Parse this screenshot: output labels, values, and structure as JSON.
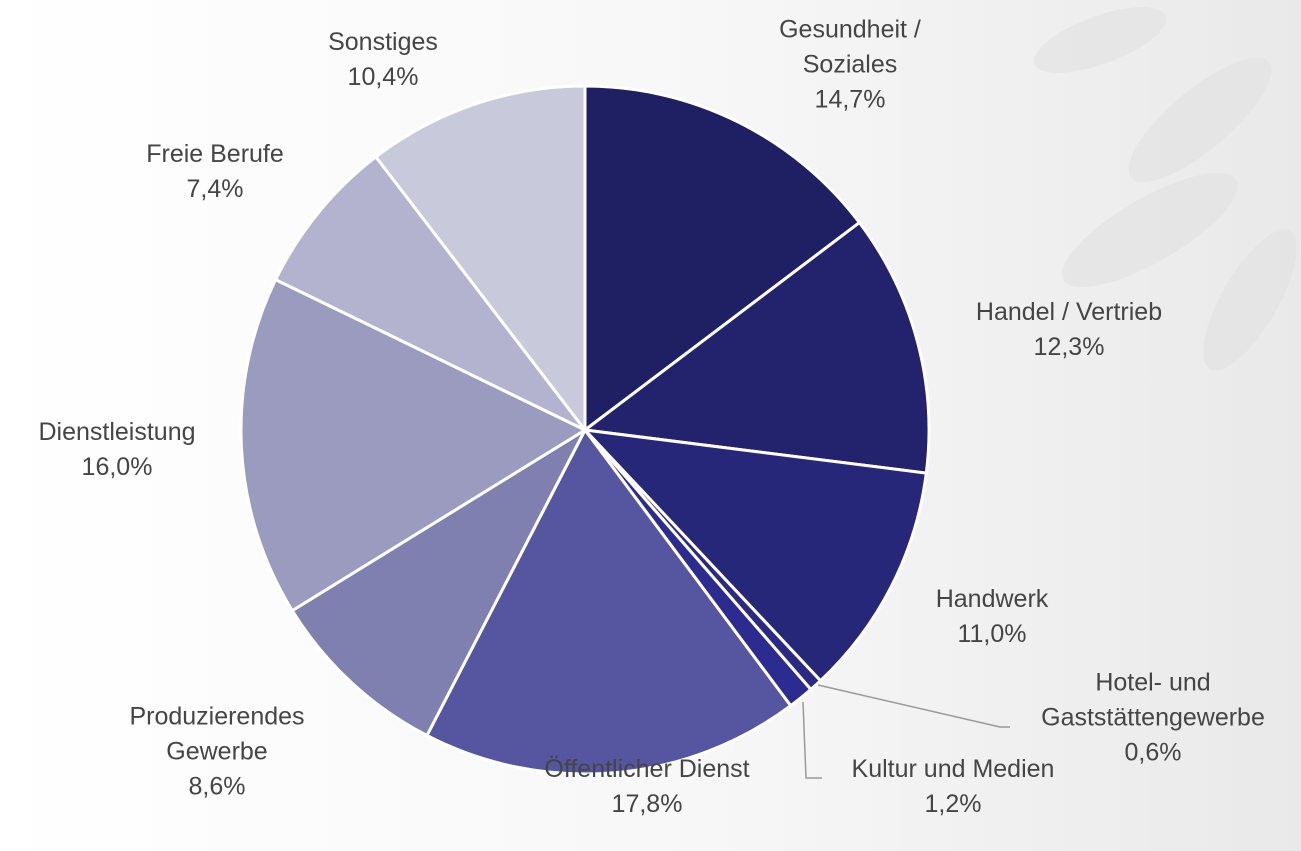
{
  "chart_data": {
    "type": "pie",
    "categories": [
      "Gesundheit / Soziales",
      "Handel / Vertrieb",
      "Handwerk",
      "Hotel- und Gaststättengewerbe",
      "Kultur und Medien",
      "Öffentlicher Dienst",
      "Produzierendes Gewerbe",
      "Dienstleistung",
      "Freie Berufe",
      "Sonstiges"
    ],
    "values": [
      14.7,
      12.3,
      11.0,
      0.6,
      1.2,
      17.8,
      8.6,
      16.0,
      7.4,
      10.4
    ],
    "value_labels": [
      "14,7%",
      "12,3%",
      "11,0%",
      "0,6%",
      "1,2%",
      "17,8%",
      "8,6%",
      "16,0%",
      "7,4%",
      "10,4%"
    ],
    "colors": [
      "#1f1f63",
      "#22226d",
      "#272779",
      "#2a2a84",
      "#2c2c90",
      "#5555a0",
      "#7f7fb0",
      "#9b9bc0",
      "#b3b3d0",
      "#c9c9dc"
    ]
  }
}
